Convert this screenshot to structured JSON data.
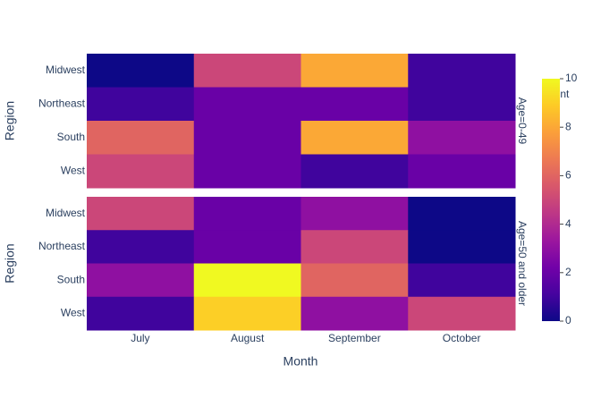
{
  "chart_data": {
    "type": "heatmap",
    "x_title": "Month",
    "y_title": "Region",
    "x": [
      "July",
      "August",
      "September",
      "October"
    ],
    "y": [
      "Midwest",
      "Northeast",
      "South",
      "West"
    ],
    "facets": [
      {
        "label": "Age=0-49",
        "z": [
          [
            0,
            5,
            8,
            1
          ],
          [
            1,
            2,
            2,
            1
          ],
          [
            6,
            2,
            8,
            3
          ],
          [
            5,
            2,
            1,
            2
          ]
        ]
      },
      {
        "label": "Age=50 and older",
        "z": [
          [
            5,
            2,
            3,
            0
          ],
          [
            1,
            2,
            5,
            0
          ],
          [
            3,
            10,
            6,
            1
          ],
          [
            1,
            9,
            3,
            5
          ]
        ]
      }
    ],
    "colorbar_title": "count",
    "zlim": [
      0,
      10
    ],
    "zticks": [
      0,
      2,
      4,
      6,
      8,
      10
    ],
    "colorscale": [
      "#0d0887",
      "#46039f",
      "#7201a8",
      "#9c179e",
      "#bd3786",
      "#d8576b",
      "#ed7953",
      "#fb9f3a",
      "#fdca26",
      "#f0f921"
    ]
  }
}
